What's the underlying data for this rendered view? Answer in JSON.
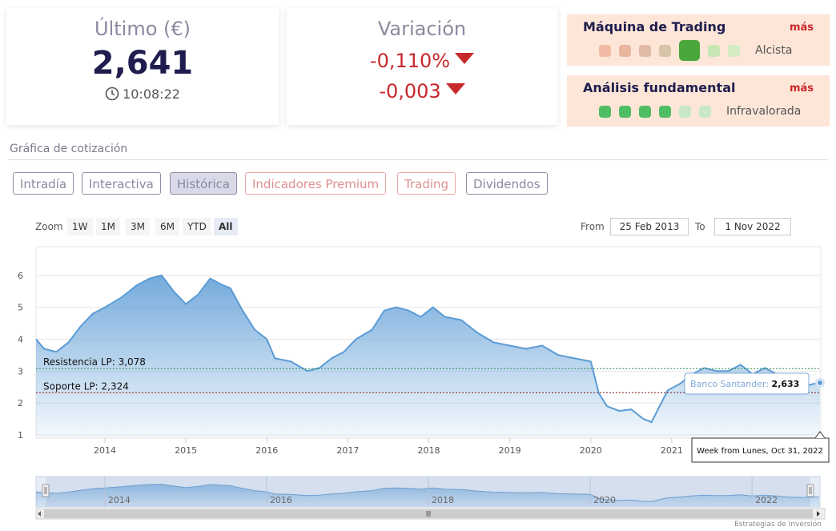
{
  "quote": {
    "last_title": "Último (€)",
    "last_value": "2,641",
    "time": "10:08:22",
    "variation_title": "Variación",
    "variation_pct": "-0,110%",
    "variation_abs": "-0,003"
  },
  "trading_machine": {
    "title": "Máquina de Trading",
    "more": "más",
    "state": "Alcista",
    "level_index": 4,
    "dot_colors": [
      "#f2b9a4",
      "#eab59f",
      "#e2bba4",
      "#d6c4a8",
      "#4aa83b",
      "#c6e6b4",
      "#d2ebc2"
    ]
  },
  "fundamental": {
    "title": "Análisis fundamental",
    "more": "más",
    "state": "Infravalorada",
    "dot_colors": [
      "#4fbd63",
      "#4fbd63",
      "#4fbd63",
      "#4fbd63",
      "#c9e8c7",
      "#c9e8c7"
    ]
  },
  "section_title": "Gráfica de cotización",
  "tabs": [
    {
      "label": "Intradía",
      "premium": false,
      "active": false
    },
    {
      "label": "Interactiva",
      "premium": false,
      "active": false
    },
    {
      "label": "Histórica",
      "premium": false,
      "active": true
    },
    {
      "label": "Indicadores Premium",
      "premium": true,
      "active": false
    },
    {
      "label": "Trading",
      "premium": true,
      "active": false
    },
    {
      "label": "Dividendos",
      "premium": false,
      "active": false
    }
  ],
  "range_selector": {
    "zoom_label": "Zoom",
    "buttons": [
      "1W",
      "1M",
      "3M",
      "6M",
      "YTD",
      "All"
    ],
    "selected": "All",
    "from_label": "From",
    "from_value": "25 Feb 2013",
    "to_label": "To",
    "to_value": "1 Nov 2022"
  },
  "chart_data": {
    "type": "area",
    "title": "",
    "xlabel": "",
    "ylabel": "",
    "xlim": [
      2013.15,
      2022.84
    ],
    "ylim": [
      0.9,
      6.9
    ],
    "y_ticks": [
      1,
      2,
      3,
      4,
      5,
      6
    ],
    "x_ticks": [
      "2014",
      "2015",
      "2016",
      "2017",
      "2018",
      "2019",
      "2020",
      "2021",
      "2022"
    ],
    "series": [
      {
        "name": "Banco Santander",
        "color": "#5b9bd5",
        "x": [
          2013.15,
          2013.25,
          2013.4,
          2013.55,
          2013.7,
          2013.85,
          2014.0,
          2014.2,
          2014.4,
          2014.55,
          2014.7,
          2014.85,
          2015.0,
          2015.15,
          2015.3,
          2015.45,
          2015.55,
          2015.7,
          2015.85,
          2016.0,
          2016.1,
          2016.3,
          2016.5,
          2016.65,
          2016.8,
          2016.95,
          2017.1,
          2017.3,
          2017.45,
          2017.6,
          2017.75,
          2017.9,
          2018.05,
          2018.2,
          2018.4,
          2018.6,
          2018.8,
          2019.0,
          2019.2,
          2019.4,
          2019.6,
          2019.8,
          2020.0,
          2020.1,
          2020.2,
          2020.35,
          2020.5,
          2020.65,
          2020.75,
          2020.85,
          2020.95,
          2021.1,
          2021.25,
          2021.4,
          2021.55,
          2021.7,
          2021.85,
          2022.0,
          2022.15,
          2022.3,
          2022.45,
          2022.6,
          2022.75,
          2022.83
        ],
        "y": [
          4.0,
          3.7,
          3.6,
          3.9,
          4.4,
          4.8,
          5.0,
          5.3,
          5.7,
          5.9,
          6.0,
          5.5,
          5.1,
          5.4,
          5.9,
          5.7,
          5.6,
          4.9,
          4.3,
          4.0,
          3.4,
          3.3,
          3.0,
          3.1,
          3.4,
          3.6,
          4.0,
          4.3,
          4.9,
          5.0,
          4.9,
          4.7,
          5.0,
          4.7,
          4.6,
          4.2,
          3.9,
          3.8,
          3.7,
          3.8,
          3.5,
          3.4,
          3.3,
          2.3,
          1.9,
          1.75,
          1.8,
          1.5,
          1.4,
          1.9,
          2.4,
          2.6,
          2.9,
          3.1,
          3.0,
          3.0,
          3.2,
          2.9,
          3.1,
          2.9,
          2.6,
          2.5,
          2.6,
          2.633
        ]
      }
    ],
    "reference_lines": [
      {
        "label": "Resistencia LP: 3,078",
        "value": 3.078,
        "color": "#2e8b57"
      },
      {
        "label": "Soporte LP: 2,324",
        "value": 2.324,
        "color": "#8b1a1a"
      }
    ],
    "tooltip": {
      "series": "Banco Santander",
      "value": "2,633",
      "date_label": "Week from Lunes, Oct 31, 2022"
    },
    "navigator_x_ticks": [
      "2014",
      "2016",
      "2018",
      "2020",
      "2022"
    ],
    "grid": true
  },
  "credits": "Estrategias de Inversión"
}
